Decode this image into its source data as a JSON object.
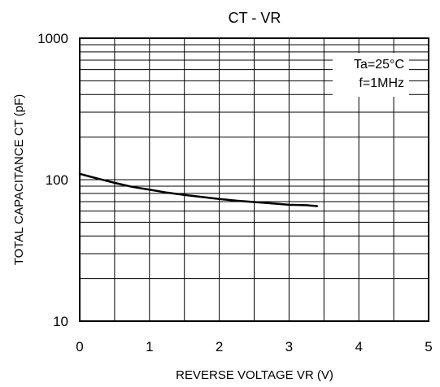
{
  "chart_data": {
    "type": "line",
    "title": "CT - VR",
    "xlabel": "REVERSE VOLTAGE  VR (V)",
    "ylabel": "TOTAL CAPACITANCE  CT (pF)",
    "xlim": [
      0,
      5
    ],
    "ylim": [
      10,
      1000
    ],
    "y_scale": "log",
    "grid": true,
    "x_ticks": [
      0,
      1,
      2,
      3,
      4,
      5
    ],
    "x_tick_labels": [
      "0",
      "1",
      "2",
      "3",
      "4",
      "5"
    ],
    "y_ticks": [
      10,
      100,
      1000
    ],
    "y_tick_labels": [
      "10",
      "100",
      "1000"
    ],
    "annotations": [
      "Ta=25°C",
      "f=1MHz"
    ],
    "series": [
      {
        "x": [
          0,
          0.25,
          0.5,
          0.75,
          1.0,
          1.25,
          1.5,
          1.75,
          2.0,
          2.25,
          2.5,
          2.75,
          3.0,
          3.25,
          3.4
        ],
        "y": [
          110,
          102,
          95,
          89,
          85,
          81,
          78,
          75.5,
          73,
          71,
          69.5,
          68,
          66.5,
          66,
          65
        ]
      }
    ]
  }
}
